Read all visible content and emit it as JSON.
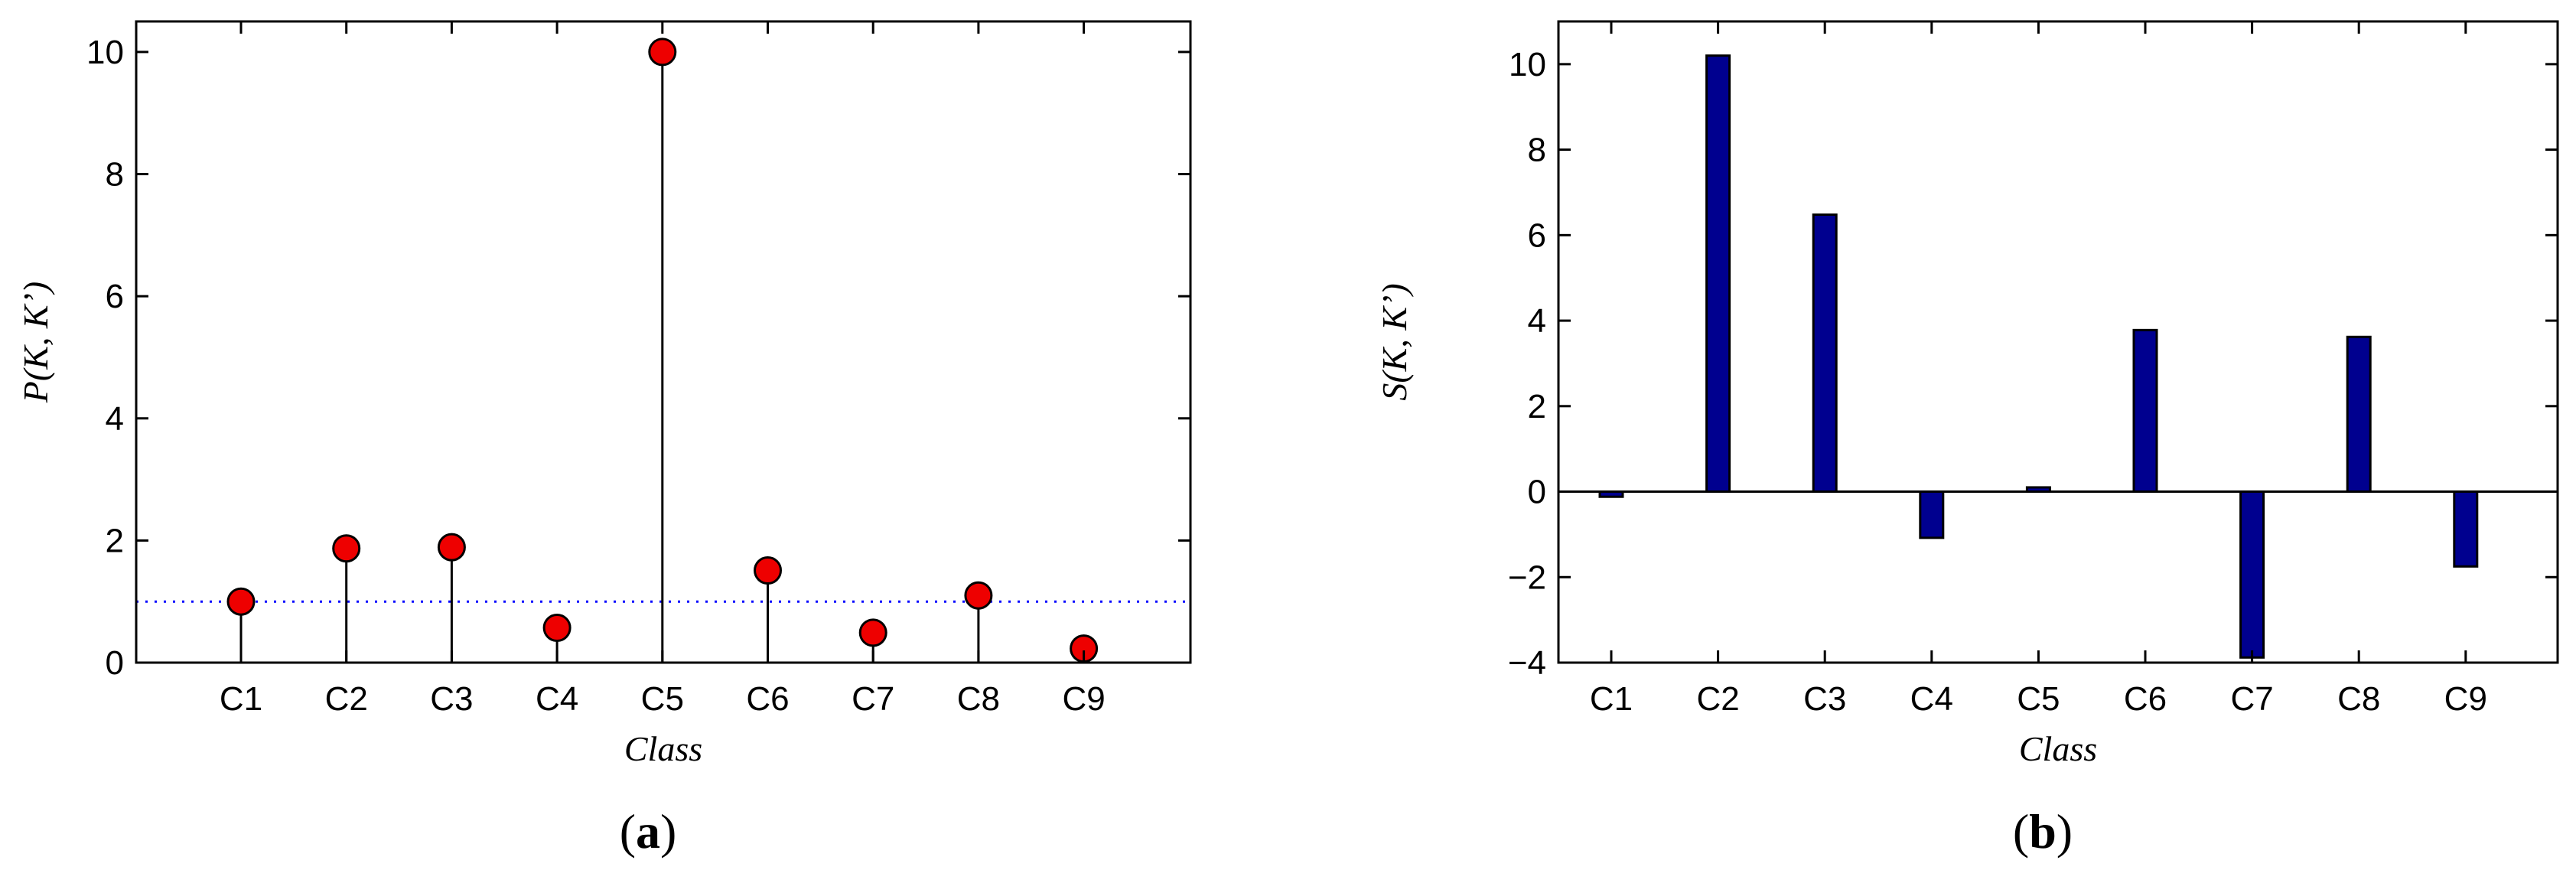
{
  "chart_data": [
    {
      "type": "stem",
      "categories": [
        "C1",
        "C2",
        "C3",
        "C4",
        "C5",
        "C6",
        "C7",
        "C8",
        "C9"
      ],
      "values": [
        1.0,
        1.87,
        1.89,
        0.57,
        10.0,
        1.51,
        0.49,
        1.1,
        0.23
      ],
      "xlabel": "Class",
      "ylabel": "P(K, K’)",
      "ylim": [
        0,
        10.5
      ],
      "yticks": [
        "0",
        "2",
        "4",
        "6",
        "8",
        "10"
      ],
      "reference_line": 1,
      "panel_label": {
        "open": "(",
        "letter": "a",
        "close": ")"
      },
      "marker_color": "#ee0000",
      "reference_color": "#0000ff"
    },
    {
      "type": "bar",
      "categories": [
        "C1",
        "C2",
        "C3",
        "C4",
        "C5",
        "C6",
        "C7",
        "C8",
        "C9"
      ],
      "values": [
        -0.12,
        10.2,
        6.48,
        -1.08,
        0.1,
        3.78,
        -3.88,
        3.62,
        -1.75
      ],
      "xlabel": "Class",
      "ylabel": "S(K, K’)",
      "ylim": [
        -4,
        11
      ],
      "yticks": [
        "−4",
        "−2",
        "0",
        "2",
        "4",
        "6",
        "8",
        "10"
      ],
      "panel_label": {
        "open": "(",
        "letter": "b",
        "close": ")"
      },
      "bar_color": "#00008f"
    }
  ]
}
